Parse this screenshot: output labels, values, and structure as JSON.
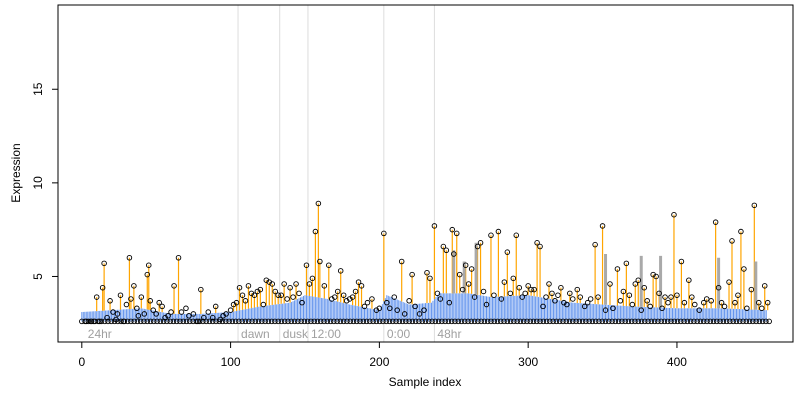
{
  "chart_data": {
    "type": "scatter",
    "title": "",
    "xlabel": "Sample index",
    "ylabel": "Expression",
    "xlim": [
      -16,
      478
    ],
    "ylim": [
      1.5,
      19.5
    ],
    "xticks": [
      0,
      100,
      200,
      300,
      400
    ],
    "yticks": [
      5,
      10,
      15
    ],
    "baseline": 2.6,
    "grid": false,
    "legend": "none",
    "colors": {
      "stem_up": "#ffa500",
      "trend": "#6495ed",
      "highlight": "#a9a9a9",
      "point_edge": "#000000",
      "vline": "#dddddd",
      "vline_text": "#a0a0a0"
    },
    "vlines": [
      {
        "x": 105,
        "label": "dawn"
      },
      {
        "x": 133,
        "label": "dusk"
      },
      {
        "x": 152,
        "label": "12:00"
      },
      {
        "x": 203,
        "label": "0:00"
      },
      {
        "x": 237,
        "label": "48hr"
      }
    ],
    "corner_label": {
      "x": 2,
      "label": "24hr"
    },
    "trend": [
      [
        0,
        3.1
      ],
      [
        20,
        3.2
      ],
      [
        40,
        3.3
      ],
      [
        60,
        3.0
      ],
      [
        80,
        3.0
      ],
      [
        100,
        3.1
      ],
      [
        120,
        3.4
      ],
      [
        140,
        3.6
      ],
      [
        150,
        4.0
      ],
      [
        165,
        3.8
      ],
      [
        180,
        3.5
      ],
      [
        200,
        3.2
      ],
      [
        205,
        4.0
      ],
      [
        220,
        3.5
      ],
      [
        235,
        3.6
      ],
      [
        240,
        4.1
      ],
      [
        260,
        4.1
      ],
      [
        275,
        3.9
      ],
      [
        300,
        4.0
      ],
      [
        330,
        3.6
      ],
      [
        350,
        3.5
      ],
      [
        370,
        3.4
      ],
      [
        400,
        3.3
      ],
      [
        430,
        3.3
      ],
      [
        460,
        3.2
      ]
    ],
    "highlight_bars": [
      {
        "x": 250,
        "y": 6.4
      },
      {
        "x": 257,
        "y": 5.8
      },
      {
        "x": 265,
        "y": 6.8
      },
      {
        "x": 352,
        "y": 6.2
      },
      {
        "x": 376,
        "y": 6.1
      },
      {
        "x": 389,
        "y": 6.1
      },
      {
        "x": 428,
        "y": 6.0
      },
      {
        "x": 453,
        "y": 5.8
      }
    ],
    "points": [
      [
        3,
        2.6
      ],
      [
        6,
        2.6
      ],
      [
        8,
        2.6
      ],
      [
        10,
        3.9
      ],
      [
        12,
        2.6
      ],
      [
        14,
        4.4
      ],
      [
        15,
        5.7
      ],
      [
        17,
        2.8
      ],
      [
        19,
        3.7
      ],
      [
        21,
        3.1
      ],
      [
        23,
        2.7
      ],
      [
        24,
        3.0
      ],
      [
        26,
        4.0
      ],
      [
        28,
        2.6
      ],
      [
        30,
        3.5
      ],
      [
        32,
        6.0
      ],
      [
        33,
        3.8
      ],
      [
        35,
        4.5
      ],
      [
        37,
        3.3
      ],
      [
        38,
        2.9
      ],
      [
        40,
        3.9
      ],
      [
        42,
        3.0
      ],
      [
        44,
        5.1
      ],
      [
        45,
        5.6
      ],
      [
        46,
        3.7
      ],
      [
        48,
        3.2
      ],
      [
        50,
        3.0
      ],
      [
        52,
        3.6
      ],
      [
        54,
        3.4
      ],
      [
        56,
        2.8
      ],
      [
        58,
        2.9
      ],
      [
        60,
        3.1
      ],
      [
        62,
        4.5
      ],
      [
        65,
        6.0
      ],
      [
        67,
        3.1
      ],
      [
        70,
        3.3
      ],
      [
        72,
        2.9
      ],
      [
        75,
        3.0
      ],
      [
        78,
        2.6
      ],
      [
        80,
        4.3
      ],
      [
        82,
        2.8
      ],
      [
        85,
        3.1
      ],
      [
        88,
        2.8
      ],
      [
        90,
        3.4
      ],
      [
        93,
        2.7
      ],
      [
        95,
        2.9
      ],
      [
        97,
        3.0
      ],
      [
        100,
        3.2
      ],
      [
        102,
        3.5
      ],
      [
        104,
        3.6
      ],
      [
        106,
        4.4
      ],
      [
        108,
        4.0
      ],
      [
        110,
        3.7
      ],
      [
        112,
        4.5
      ],
      [
        114,
        4.1
      ],
      [
        116,
        4.0
      ],
      [
        118,
        4.2
      ],
      [
        120,
        4.3
      ],
      [
        122,
        3.5
      ],
      [
        124,
        4.8
      ],
      [
        126,
        4.7
      ],
      [
        128,
        4.6
      ],
      [
        130,
        4.2
      ],
      [
        132,
        4.0
      ],
      [
        134,
        4.0
      ],
      [
        136,
        4.6
      ],
      [
        138,
        3.8
      ],
      [
        140,
        4.4
      ],
      [
        142,
        3.9
      ],
      [
        144,
        4.6
      ],
      [
        146,
        4.1
      ],
      [
        148,
        3.6
      ],
      [
        151,
        5.6
      ],
      [
        153,
        4.6
      ],
      [
        155,
        4.9
      ],
      [
        157,
        7.4
      ],
      [
        159,
        8.9
      ],
      [
        160,
        5.8
      ],
      [
        163,
        4.5
      ],
      [
        166,
        5.6
      ],
      [
        168,
        3.8
      ],
      [
        170,
        3.9
      ],
      [
        172,
        4.2
      ],
      [
        174,
        5.3
      ],
      [
        176,
        4.0
      ],
      [
        178,
        3.7
      ],
      [
        180,
        3.8
      ],
      [
        182,
        3.9
      ],
      [
        184,
        4.2
      ],
      [
        186,
        4.7
      ],
      [
        188,
        4.5
      ],
      [
        190,
        3.4
      ],
      [
        192,
        3.6
      ],
      [
        195,
        3.8
      ],
      [
        198,
        3.2
      ],
      [
        200,
        3.3
      ],
      [
        203,
        7.3
      ],
      [
        205,
        3.6
      ],
      [
        207,
        3.3
      ],
      [
        210,
        3.9
      ],
      [
        212,
        3.2
      ],
      [
        215,
        5.8
      ],
      [
        217,
        3.0
      ],
      [
        220,
        3.7
      ],
      [
        222,
        5.1
      ],
      [
        224,
        3.4
      ],
      [
        227,
        3.0
      ],
      [
        230,
        3.2
      ],
      [
        232,
        5.2
      ],
      [
        234,
        4.9
      ],
      [
        237,
        7.7
      ],
      [
        239,
        4.1
      ],
      [
        241,
        3.8
      ],
      [
        243,
        6.6
      ],
      [
        245,
        6.4
      ],
      [
        247,
        3.6
      ],
      [
        249,
        7.5
      ],
      [
        250,
        6.2
      ],
      [
        252,
        7.3
      ],
      [
        254,
        5.1
      ],
      [
        256,
        4.3
      ],
      [
        258,
        5.6
      ],
      [
        260,
        4.6
      ],
      [
        262,
        5.4
      ],
      [
        264,
        3.9
      ],
      [
        266,
        6.6
      ],
      [
        268,
        6.8
      ],
      [
        270,
        4.2
      ],
      [
        272,
        3.5
      ],
      [
        275,
        7.2
      ],
      [
        277,
        4.0
      ],
      [
        280,
        7.4
      ],
      [
        282,
        3.8
      ],
      [
        284,
        4.7
      ],
      [
        286,
        6.3
      ],
      [
        288,
        4.1
      ],
      [
        290,
        4.9
      ],
      [
        292,
        7.2
      ],
      [
        294,
        4.4
      ],
      [
        296,
        3.9
      ],
      [
        298,
        4.1
      ],
      [
        300,
        4.5
      ],
      [
        302,
        4.3
      ],
      [
        304,
        4.3
      ],
      [
        306,
        6.8
      ],
      [
        308,
        6.6
      ],
      [
        310,
        3.4
      ],
      [
        312,
        3.9
      ],
      [
        314,
        4.6
      ],
      [
        316,
        4.1
      ],
      [
        318,
        3.7
      ],
      [
        320,
        4.0
      ],
      [
        322,
        4.4
      ],
      [
        324,
        3.6
      ],
      [
        326,
        3.5
      ],
      [
        328,
        4.1
      ],
      [
        330,
        3.8
      ],
      [
        333,
        4.3
      ],
      [
        335,
        3.9
      ],
      [
        338,
        3.4
      ],
      [
        340,
        3.6
      ],
      [
        342,
        3.8
      ],
      [
        345,
        6.7
      ],
      [
        347,
        3.9
      ],
      [
        350,
        7.7
      ],
      [
        352,
        3.2
      ],
      [
        355,
        4.6
      ],
      [
        357,
        3.3
      ],
      [
        360,
        5.4
      ],
      [
        362,
        3.7
      ],
      [
        364,
        4.2
      ],
      [
        366,
        5.7
      ],
      [
        368,
        4.0
      ],
      [
        370,
        3.5
      ],
      [
        372,
        4.6
      ],
      [
        374,
        4.8
      ],
      [
        376,
        3.2
      ],
      [
        378,
        4.4
      ],
      [
        380,
        3.7
      ],
      [
        382,
        3.4
      ],
      [
        384,
        5.1
      ],
      [
        386,
        5.0
      ],
      [
        388,
        4.1
      ],
      [
        390,
        3.3
      ],
      [
        392,
        3.9
      ],
      [
        394,
        3.6
      ],
      [
        396,
        3.9
      ],
      [
        398,
        8.3
      ],
      [
        400,
        4.0
      ],
      [
        403,
        5.8
      ],
      [
        405,
        3.6
      ],
      [
        408,
        4.8
      ],
      [
        410,
        3.9
      ],
      [
        412,
        3.5
      ],
      [
        415,
        3.2
      ],
      [
        418,
        3.6
      ],
      [
        420,
        3.8
      ],
      [
        423,
        3.7
      ],
      [
        426,
        7.9
      ],
      [
        428,
        4.4
      ],
      [
        430,
        3.6
      ],
      [
        432,
        3.4
      ],
      [
        435,
        4.7
      ],
      [
        437,
        6.9
      ],
      [
        439,
        3.6
      ],
      [
        441,
        4.0
      ],
      [
        443,
        7.4
      ],
      [
        445,
        5.4
      ],
      [
        447,
        3.3
      ],
      [
        450,
        4.3
      ],
      [
        452,
        8.8
      ],
      [
        455,
        3.6
      ],
      [
        457,
        3.3
      ],
      [
        459,
        4.5
      ],
      [
        461,
        3.6
      ]
    ]
  }
}
